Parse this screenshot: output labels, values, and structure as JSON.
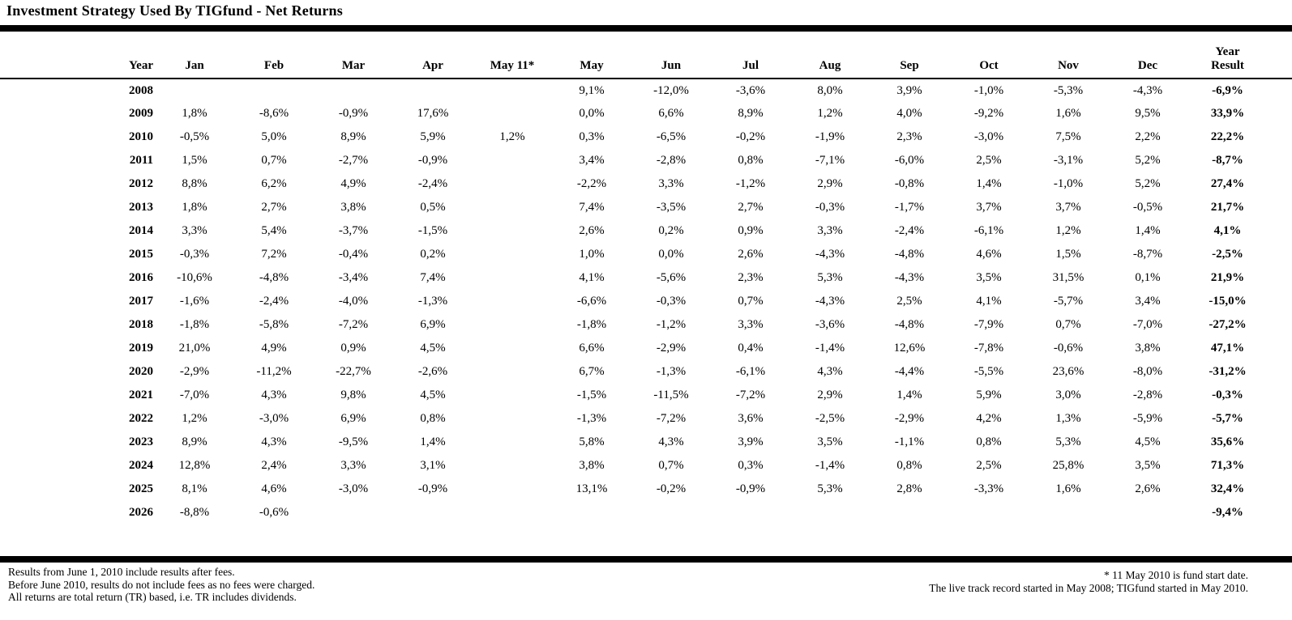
{
  "title": "Investment Strategy Used By TIGfund - Net Returns",
  "colors": {
    "text": "#000000",
    "background": "#ffffff",
    "rule": "#000000"
  },
  "table": {
    "year_header": "Year",
    "month_headers": [
      "Jan",
      "Feb",
      "Mar",
      "Apr",
      "May 11*",
      "May",
      "Jun",
      "Jul",
      "Aug",
      "Sep",
      "Oct",
      "Nov",
      "Dec"
    ],
    "result_header_line1": "Year",
    "result_header_line2": "Result",
    "rows": [
      {
        "year": "2008",
        "cells": [
          "",
          "",
          "",
          "",
          "",
          "9,1%",
          "-12,0%",
          "-3,6%",
          "8,0%",
          "3,9%",
          "-1,0%",
          "-5,3%",
          "-4,3%"
        ],
        "result": "-6,9%"
      },
      {
        "year": "2009",
        "cells": [
          "1,8%",
          "-8,6%",
          "-0,9%",
          "17,6%",
          "",
          "0,0%",
          "6,6%",
          "8,9%",
          "1,2%",
          "4,0%",
          "-9,2%",
          "1,6%",
          "9,5%"
        ],
        "result": "33,9%"
      },
      {
        "year": "2010",
        "cells": [
          "-0,5%",
          "5,0%",
          "8,9%",
          "5,9%",
          "1,2%",
          "0,3%",
          "-6,5%",
          "-0,2%",
          "-1,9%",
          "2,3%",
          "-3,0%",
          "7,5%",
          "2,2%"
        ],
        "result": "22,2%"
      },
      {
        "year": "2011",
        "cells": [
          "1,5%",
          "0,7%",
          "-2,7%",
          "-0,9%",
          "",
          "3,4%",
          "-2,8%",
          "0,8%",
          "-7,1%",
          "-6,0%",
          "2,5%",
          "-3,1%",
          "5,2%"
        ],
        "result": "-8,7%"
      },
      {
        "year": "2012",
        "cells": [
          "8,8%",
          "6,2%",
          "4,9%",
          "-2,4%",
          "",
          "-2,2%",
          "3,3%",
          "-1,2%",
          "2,9%",
          "-0,8%",
          "1,4%",
          "-1,0%",
          "5,2%"
        ],
        "result": "27,4%"
      },
      {
        "year": "2013",
        "cells": [
          "1,8%",
          "2,7%",
          "3,8%",
          "0,5%",
          "",
          "7,4%",
          "-3,5%",
          "2,7%",
          "-0,3%",
          "-1,7%",
          "3,7%",
          "3,7%",
          "-0,5%"
        ],
        "result": "21,7%"
      },
      {
        "year": "2014",
        "cells": [
          "3,3%",
          "5,4%",
          "-3,7%",
          "-1,5%",
          "",
          "2,6%",
          "0,2%",
          "0,9%",
          "3,3%",
          "-2,4%",
          "-6,1%",
          "1,2%",
          "1,4%"
        ],
        "result": "4,1%"
      },
      {
        "year": "2015",
        "cells": [
          "-0,3%",
          "7,2%",
          "-0,4%",
          "0,2%",
          "",
          "1,0%",
          "0,0%",
          "2,6%",
          "-4,3%",
          "-4,8%",
          "4,6%",
          "1,5%",
          "-8,7%"
        ],
        "result": "-2,5%"
      },
      {
        "year": "2016",
        "cells": [
          "-10,6%",
          "-4,8%",
          "-3,4%",
          "7,4%",
          "",
          "4,1%",
          "-5,6%",
          "2,3%",
          "5,3%",
          "-4,3%",
          "3,5%",
          "31,5%",
          "0,1%"
        ],
        "result": "21,9%"
      },
      {
        "year": "2017",
        "cells": [
          "-1,6%",
          "-2,4%",
          "-4,0%",
          "-1,3%",
          "",
          "-6,6%",
          "-0,3%",
          "0,7%",
          "-4,3%",
          "2,5%",
          "4,1%",
          "-5,7%",
          "3,4%"
        ],
        "result": "-15,0%"
      },
      {
        "year": "2018",
        "cells": [
          "-1,8%",
          "-5,8%",
          "-7,2%",
          "6,9%",
          "",
          "-1,8%",
          "-1,2%",
          "3,3%",
          "-3,6%",
          "-4,8%",
          "-7,9%",
          "0,7%",
          "-7,0%"
        ],
        "result": "-27,2%"
      },
      {
        "year": "2019",
        "cells": [
          "21,0%",
          "4,9%",
          "0,9%",
          "4,5%",
          "",
          "6,6%",
          "-2,9%",
          "0,4%",
          "-1,4%",
          "12,6%",
          "-7,8%",
          "-0,6%",
          "3,8%"
        ],
        "result": "47,1%"
      },
      {
        "year": "2020",
        "cells": [
          "-2,9%",
          "-11,2%",
          "-22,7%",
          "-2,6%",
          "",
          "6,7%",
          "-1,3%",
          "-6,1%",
          "4,3%",
          "-4,4%",
          "-5,5%",
          "23,6%",
          "-8,0%"
        ],
        "result": "-31,2%"
      },
      {
        "year": "2021",
        "cells": [
          "-7,0%",
          "4,3%",
          "9,8%",
          "4,5%",
          "",
          "-1,5%",
          "-11,5%",
          "-7,2%",
          "2,9%",
          "1,4%",
          "5,9%",
          "3,0%",
          "-2,8%"
        ],
        "result": "-0,3%"
      },
      {
        "year": "2022",
        "cells": [
          "1,2%",
          "-3,0%",
          "6,9%",
          "0,8%",
          "",
          "-1,3%",
          "-7,2%",
          "3,6%",
          "-2,5%",
          "-2,9%",
          "4,2%",
          "1,3%",
          "-5,9%"
        ],
        "result": "-5,7%"
      },
      {
        "year": "2023",
        "cells": [
          "8,9%",
          "4,3%",
          "-9,5%",
          "1,4%",
          "",
          "5,8%",
          "4,3%",
          "3,9%",
          "3,5%",
          "-1,1%",
          "0,8%",
          "5,3%",
          "4,5%"
        ],
        "result": "35,6%"
      },
      {
        "year": "2024",
        "cells": [
          "12,8%",
          "2,4%",
          "3,3%",
          "3,1%",
          "",
          "3,8%",
          "0,7%",
          "0,3%",
          "-1,4%",
          "0,8%",
          "2,5%",
          "25,8%",
          "3,5%"
        ],
        "result": "71,3%"
      },
      {
        "year": "2025",
        "cells": [
          "8,1%",
          "4,6%",
          "-3,0%",
          "-0,9%",
          "",
          "13,1%",
          "-0,2%",
          "-0,9%",
          "5,3%",
          "2,8%",
          "-3,3%",
          "1,6%",
          "2,6%"
        ],
        "result": "32,4%"
      },
      {
        "year": "2026",
        "cells": [
          "-8,8%",
          "-0,6%",
          "",
          "",
          "",
          "",
          "",
          "",
          "",
          "",
          "",
          "",
          ""
        ],
        "result": "-9,4%"
      }
    ]
  },
  "footnotes": {
    "left": [
      "Results from June 1, 2010 include results after fees.",
      "Before June 2010, results do not include fees as no fees were charged.",
      "All returns are total return (TR) based, i.e. TR includes dividends."
    ],
    "right": [
      "* 11 May 2010 is fund start date.",
      "The live track record started in May 2008; TIGfund started in May 2010."
    ]
  }
}
